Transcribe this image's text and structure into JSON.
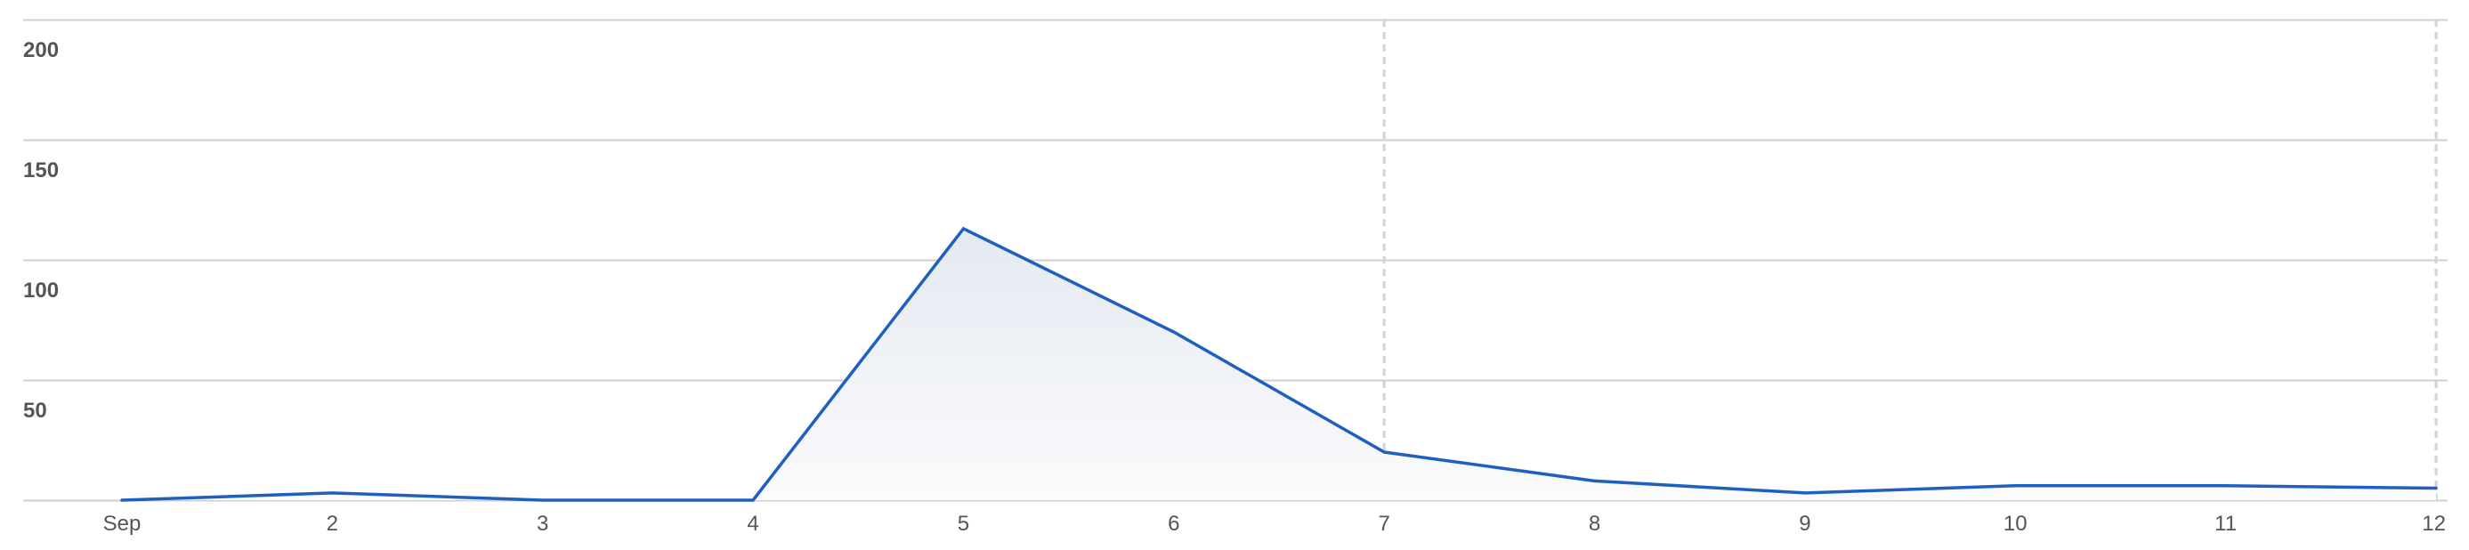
{
  "chart_data": {
    "type": "area",
    "categories": [
      "Sep",
      "2",
      "3",
      "4",
      "5",
      "6",
      "7",
      "8",
      "9",
      "10",
      "11",
      "12"
    ],
    "series": [
      {
        "values": [
          0,
          3,
          0,
          0,
          113,
          70,
          20,
          8,
          3,
          6,
          6,
          5
        ]
      }
    ],
    "ylim": [
      0,
      200
    ],
    "yticks": [
      "50",
      "100",
      "150",
      "200"
    ],
    "ytick_values": [
      50,
      100,
      150,
      200
    ],
    "grid": true,
    "dashed_markers_at": [
      "7",
      "12"
    ],
    "colors": {
      "line": "#1f5fbf",
      "fill_top": "#e4e9f1",
      "fill_bottom": "#fbfbfc",
      "grid": "#cfcfcf",
      "marker": "#d2d2d2"
    }
  }
}
